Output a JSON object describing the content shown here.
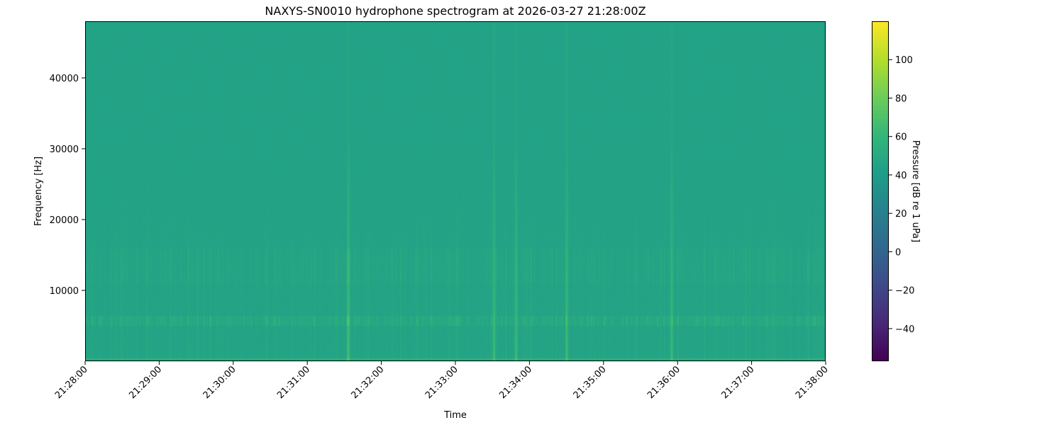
{
  "chart_data": {
    "type": "heatmap",
    "title": "NAXYS-SN0010 hydrophone spectrogram at 2026-03-27 21:28:00Z",
    "xlabel": "Time",
    "ylabel": "Frequency [Hz]",
    "colorbar_label": "Pressure [dB re 1 uPa]",
    "colormap": "viridis",
    "x_ticks": [
      "21:28:00",
      "21:29:00",
      "21:30:00",
      "21:31:00",
      "21:32:00",
      "21:33:00",
      "21:34:00",
      "21:35:00",
      "21:36:00",
      "21:37:00",
      "21:38:00"
    ],
    "x_range": [
      "21:28:00",
      "21:38:00"
    ],
    "y_ticks": [
      10000,
      20000,
      30000,
      40000
    ],
    "ylim": [
      0,
      48000
    ],
    "colorbar_ticks": [
      -40,
      -20,
      0,
      20,
      40,
      60,
      80,
      100
    ],
    "clim": [
      -57,
      120
    ],
    "background_level_db": 45,
    "tonal_band_hz": [
      5000,
      6500
    ],
    "tonal_band_level_db": 58,
    "transient_times": [
      "21:31:33",
      "21:33:31",
      "21:33:49",
      "21:34:30",
      "21:35:55"
    ],
    "transient_level_db": 65,
    "grid": false
  }
}
